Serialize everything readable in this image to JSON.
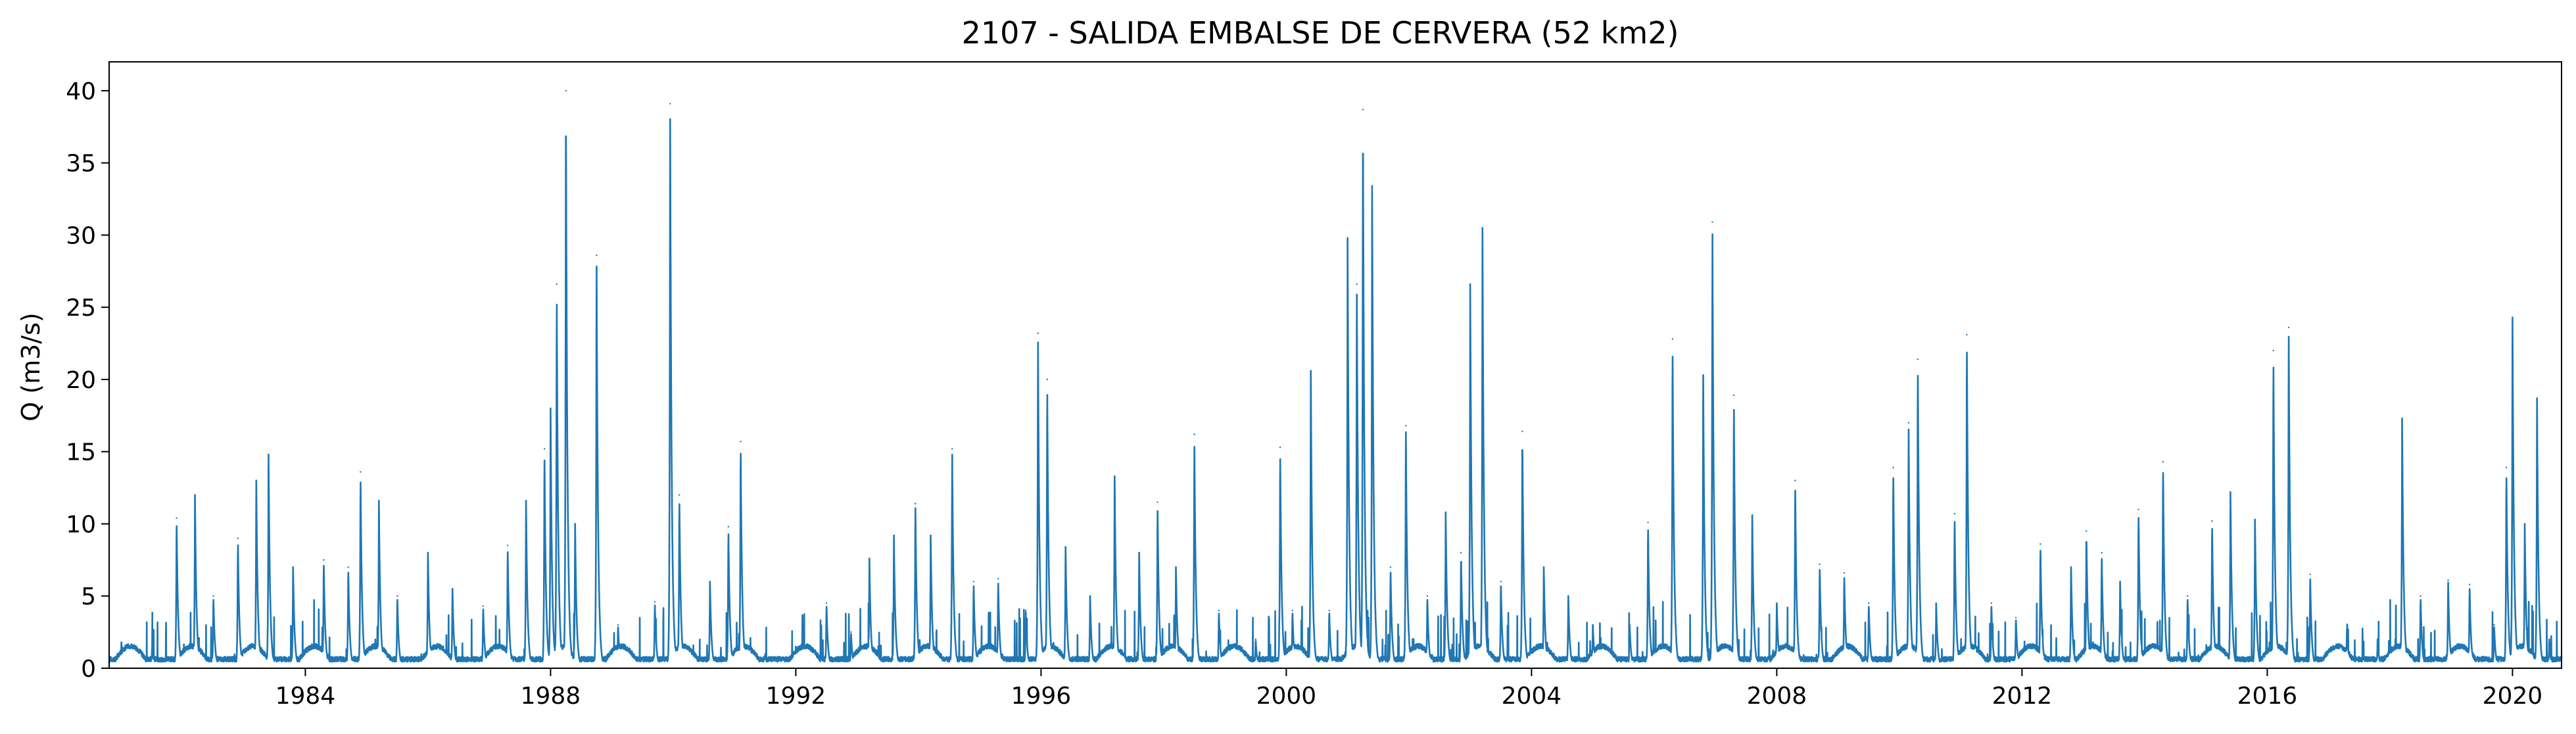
{
  "chart_data": {
    "type": "line",
    "title": "2107 - SALIDA EMBALSE DE CERVERA (52 km2)",
    "xlabel": "",
    "ylabel": "Q (m3/s)",
    "xlim": [
      1980.8,
      2020.8
    ],
    "ylim": [
      0,
      42
    ],
    "x_ticks": [
      1984,
      1988,
      1992,
      1996,
      2000,
      2004,
      2008,
      2012,
      2016,
      2020
    ],
    "x_tick_labels": [
      "1984",
      "1988",
      "1992",
      "1996",
      "2000",
      "2004",
      "2008",
      "2012",
      "2016",
      "2020"
    ],
    "y_ticks": [
      0,
      5,
      10,
      15,
      20,
      25,
      30,
      35,
      40
    ],
    "y_tick_labels": [
      "0",
      "5",
      "10",
      "15",
      "20",
      "25",
      "30",
      "35",
      "40"
    ],
    "grid": false,
    "series": [
      {
        "color": "#1f77b4",
        "peaks": [
          [
            1981.0,
            1.8
          ],
          [
            1981.5,
            1.5
          ],
          [
            1981.9,
            10.4
          ],
          [
            1982.2,
            12.0
          ],
          [
            1982.5,
            5.0
          ],
          [
            1982.9,
            9.0
          ],
          [
            1983.2,
            13.0
          ],
          [
            1983.4,
            14.8
          ],
          [
            1983.8,
            7.0
          ],
          [
            1984.3,
            7.5
          ],
          [
            1984.7,
            7.0
          ],
          [
            1984.9,
            13.6
          ],
          [
            1985.2,
            11.6
          ],
          [
            1985.5,
            5.0
          ],
          [
            1986.0,
            8.0
          ],
          [
            1986.4,
            5.5
          ],
          [
            1986.9,
            4.3
          ],
          [
            1987.3,
            8.5
          ],
          [
            1987.6,
            11.6
          ],
          [
            1987.9,
            15.2
          ],
          [
            1988.0,
            18.0
          ],
          [
            1988.1,
            26.6
          ],
          [
            1988.25,
            40.0
          ],
          [
            1988.4,
            10.0
          ],
          [
            1988.75,
            28.6
          ],
          [
            1989.1,
            3.0
          ],
          [
            1989.7,
            4.6
          ],
          [
            1989.95,
            39.1
          ],
          [
            1990.1,
            12.0
          ],
          [
            1990.6,
            6.0
          ],
          [
            1990.9,
            9.8
          ],
          [
            1991.1,
            15.7
          ],
          [
            1991.5,
            1.0
          ],
          [
            1992.0,
            1.5
          ],
          [
            1992.5,
            4.5
          ],
          [
            1992.9,
            2.5
          ],
          [
            1993.2,
            7.6
          ],
          [
            1993.6,
            9.2
          ],
          [
            1993.95,
            11.4
          ],
          [
            1994.2,
            9.2
          ],
          [
            1994.55,
            15.2
          ],
          [
            1994.9,
            6.0
          ],
          [
            1995.3,
            6.2
          ],
          [
            1995.75,
            4.0
          ],
          [
            1995.95,
            23.2
          ],
          [
            1996.1,
            20.0
          ],
          [
            1996.4,
            8.4
          ],
          [
            1996.8,
            5.0
          ],
          [
            1997.2,
            13.3
          ],
          [
            1997.6,
            8.0
          ],
          [
            1997.9,
            11.5
          ],
          [
            1998.2,
            7.0
          ],
          [
            1998.5,
            16.2
          ],
          [
            1998.9,
            4.0
          ],
          [
            1999.5,
            2.0
          ],
          [
            1999.9,
            15.3
          ],
          [
            2000.1,
            4.0
          ],
          [
            2000.4,
            20.6
          ],
          [
            2000.7,
            4.0
          ],
          [
            2001.0,
            29.8
          ],
          [
            2001.15,
            26.6
          ],
          [
            2001.25,
            38.7
          ],
          [
            2001.4,
            33.4
          ],
          [
            2001.7,
            7.0
          ],
          [
            2001.95,
            16.8
          ],
          [
            2002.3,
            5.0
          ],
          [
            2002.6,
            10.8
          ],
          [
            2002.85,
            8.0
          ],
          [
            2003.0,
            26.6
          ],
          [
            2003.2,
            30.5
          ],
          [
            2003.5,
            6.0
          ],
          [
            2003.85,
            16.4
          ],
          [
            2004.2,
            7.0
          ],
          [
            2004.6,
            5.0
          ],
          [
            2005.0,
            3.0
          ],
          [
            2005.6,
            3.0
          ],
          [
            2005.9,
            10.1
          ],
          [
            2006.3,
            22.8
          ],
          [
            2006.8,
            20.3
          ],
          [
            2006.95,
            30.9
          ],
          [
            2007.3,
            18.9
          ],
          [
            2007.6,
            10.6
          ],
          [
            2008.0,
            4.5
          ],
          [
            2008.3,
            13.0
          ],
          [
            2008.7,
            7.2
          ],
          [
            2009.1,
            6.6
          ],
          [
            2009.5,
            4.5
          ],
          [
            2009.9,
            13.9
          ],
          [
            2010.15,
            17.0
          ],
          [
            2010.3,
            21.4
          ],
          [
            2010.6,
            4.5
          ],
          [
            2010.9,
            10.7
          ],
          [
            2011.1,
            23.1
          ],
          [
            2011.5,
            4.5
          ],
          [
            2011.9,
            3.5
          ],
          [
            2012.3,
            8.6
          ],
          [
            2012.8,
            7.0
          ],
          [
            2013.05,
            9.5
          ],
          [
            2013.3,
            8.0
          ],
          [
            2013.6,
            6.0
          ],
          [
            2013.9,
            11.0
          ],
          [
            2014.3,
            14.3
          ],
          [
            2014.7,
            5.0
          ],
          [
            2015.1,
            10.2
          ],
          [
            2015.4,
            12.2
          ],
          [
            2015.8,
            10.3
          ],
          [
            2016.1,
            22.0
          ],
          [
            2016.35,
            23.6
          ],
          [
            2016.7,
            6.5
          ],
          [
            2017.3,
            3.0
          ],
          [
            2017.8,
            2.0
          ],
          [
            2018.2,
            17.3
          ],
          [
            2018.5,
            5.0
          ],
          [
            2018.95,
            6.1
          ],
          [
            2019.3,
            5.8
          ],
          [
            2019.7,
            3.0
          ],
          [
            2019.9,
            13.9
          ],
          [
            2020.0,
            24.3
          ],
          [
            2020.2,
            10.0
          ],
          [
            2020.4,
            18.7
          ],
          [
            2020.6,
            2.0
          ]
        ]
      }
    ]
  }
}
